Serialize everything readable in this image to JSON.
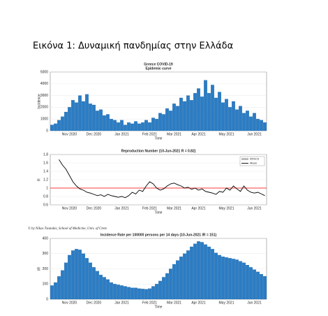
{
  "caption": "Εικόνα 1: Δυναμική πανδημίας στην Ελλάδα",
  "chart_data": [
    {
      "type": "bar",
      "title": "Greece COVID-19",
      "subtitle": "Epidemic curve",
      "x_label": "Time",
      "y_label": "Incidence",
      "color": "#2b7cc4",
      "categories": [
        null,
        null,
        null,
        null,
        null,
        "Nov 2020",
        null,
        null,
        null,
        null,
        null,
        null,
        "Dec 2020",
        null,
        null,
        null,
        null,
        null,
        null,
        null,
        "Jan 2021",
        null,
        null,
        null,
        null,
        null,
        null,
        null,
        "Feb 2021",
        null,
        null,
        null,
        null,
        null,
        null,
        "Mar 2021",
        null,
        null,
        null,
        null,
        null,
        null,
        "Apr 2021",
        null,
        null,
        null,
        null,
        null,
        null,
        null,
        "May 2021",
        null,
        null,
        null,
        null,
        null,
        null,
        null,
        "Jun 2021",
        null,
        null,
        null
      ],
      "values": [
        500,
        600,
        900,
        1200,
        1600,
        2000,
        2600,
        2400,
        3000,
        2500,
        3100,
        2300,
        2200,
        1700,
        1800,
        1300,
        1400,
        1000,
        900,
        700,
        900,
        500,
        700,
        600,
        800,
        600,
        700,
        900,
        700,
        1100,
        1000,
        1500,
        1400,
        1900,
        1700,
        2300,
        2100,
        2800,
        2500,
        3000,
        2600,
        3200,
        3600,
        2900,
        4300,
        3200,
        3900,
        2800,
        3300,
        2400,
        2700,
        2000,
        2500,
        1800,
        2100,
        1500,
        1700,
        1200,
        1500,
        1000,
        900,
        700
      ],
      "ylim": [
        0,
        5000
      ],
      "yticks": [
        0,
        1000,
        2000,
        3000,
        4000,
        5000
      ],
      "grid": true
    },
    {
      "type": "line",
      "title": "Reproduction Number (10-Jun-2021 R = 0.82)",
      "x_label": "Time",
      "y_label": "R",
      "categories": [
        null,
        null,
        null,
        null,
        null,
        "Nov 2020",
        null,
        null,
        null,
        null,
        null,
        null,
        "Dec 2020",
        null,
        null,
        null,
        null,
        null,
        null,
        null,
        "Jan 2021",
        null,
        null,
        null,
        null,
        null,
        null,
        null,
        "Feb 2021",
        null,
        null,
        null,
        null,
        null,
        null,
        "Mar 2021",
        null,
        null,
        null,
        null,
        null,
        null,
        "Apr 2021",
        null,
        null,
        null,
        null,
        null,
        null,
        null,
        "May 2021",
        null,
        null,
        null,
        null,
        null,
        null,
        null,
        "Jun 2021",
        null,
        null,
        null
      ],
      "series": [
        {
          "name": "95%CrI",
          "color": "#bbbbbb"
        },
        {
          "name": "Mean",
          "color": "#000000",
          "values": [
            null,
            null,
            1.68,
            1.55,
            1.45,
            1.3,
            1.15,
            1.05,
            0.98,
            0.95,
            0.9,
            0.88,
            0.85,
            0.82,
            0.84,
            0.8,
            0.85,
            0.82,
            0.8,
            0.78,
            0.8,
            0.77,
            0.82,
            0.9,
            0.86,
            0.95,
            0.92,
            1.05,
            1.15,
            1.1,
            1.0,
            0.95,
            0.98,
            1.05,
            1.1,
            1.12,
            1.08,
            1.05,
            1.0,
            1.02,
            0.97,
            1.0,
            0.95,
            0.98,
            0.92,
            0.9,
            0.88,
            0.85,
            0.92,
            0.9,
            1.0,
            0.95,
            1.05,
            0.98,
            0.92,
            1.05,
            0.95,
            0.9,
            0.88,
            0.9,
            0.86,
            0.82
          ]
        }
      ],
      "hline": 1,
      "hline_color": "#ff0000",
      "ylim": [
        0.6,
        1.8
      ],
      "yticks": [
        0.6,
        0.8,
        1,
        1.2,
        1.4,
        1.6,
        1.8
      ],
      "grid": true,
      "legend": "upper right"
    },
    {
      "type": "bar",
      "annotation": "© by Nikos Tzanakis, School of Medicine, Univ. of Crete",
      "title": "Incidence Rate per 100000 persons per 14 days (10-Jun-2021 IR = 151)",
      "x_label": "Time",
      "y_label": "IR",
      "color": "#2b7cc4",
      "categories": [
        null,
        null,
        null,
        null,
        null,
        "Nov 2020",
        null,
        null,
        null,
        null,
        null,
        null,
        "Dec 2020",
        null,
        null,
        null,
        null,
        null,
        null,
        null,
        "Jan 2021",
        null,
        null,
        null,
        null,
        null,
        null,
        null,
        "Feb 2021",
        null,
        null,
        null,
        null,
        null,
        null,
        "Mar 2021",
        null,
        null,
        null,
        null,
        null,
        null,
        "Apr 2021",
        null,
        null,
        null,
        null,
        null,
        null,
        null,
        "May 2021",
        null,
        null,
        null,
        null,
        null,
        null,
        null,
        "Jun 2021",
        null,
        null,
        null
      ],
      "values": [
        90,
        110,
        150,
        190,
        240,
        290,
        320,
        330,
        325,
        300,
        270,
        240,
        210,
        185,
        160,
        145,
        130,
        110,
        100,
        95,
        90,
        85,
        80,
        75,
        75,
        70,
        68,
        66,
        70,
        85,
        100,
        120,
        145,
        170,
        200,
        230,
        255,
        280,
        300,
        320,
        345,
        365,
        380,
        375,
        360,
        345,
        330,
        305,
        290,
        280,
        275,
        270,
        265,
        260,
        250,
        240,
        225,
        210,
        195,
        180,
        165,
        151
      ],
      "ylim": [
        0,
        400
      ],
      "yticks": [
        0,
        100,
        200,
        300,
        400
      ],
      "grid": true
    }
  ]
}
